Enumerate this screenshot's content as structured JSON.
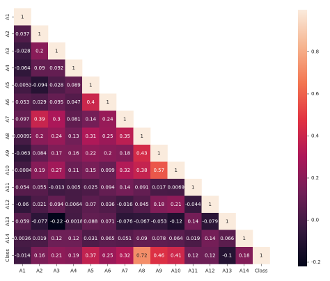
{
  "chart_data": {
    "type": "heatmap",
    "title": "",
    "xlabel": "",
    "ylabel": "",
    "labels": [
      "A1",
      "A2",
      "A3",
      "A4",
      "A5",
      "A6",
      "A7",
      "A8",
      "A9",
      "A10",
      "A11",
      "A12",
      "A13",
      "A14",
      "Class"
    ],
    "mask": "upper-triangle",
    "matrix": [
      [
        "1"
      ],
      [
        "0.037",
        "1"
      ],
      [
        "-0.028",
        "0.2",
        "1"
      ],
      [
        "-0.064",
        "0.09",
        "0.092",
        "1"
      ],
      [
        "-0.0053",
        "-0.094",
        "0.028",
        "0.089",
        "1"
      ],
      [
        "0.053",
        "0.029",
        "0.095",
        "0.047",
        "0.4",
        "1"
      ],
      [
        "0.097",
        "0.39",
        "0.3",
        "0.081",
        "0.14",
        "0.24",
        "1"
      ],
      [
        "0.00092",
        "0.2",
        "0.24",
        "0.13",
        "0.31",
        "0.25",
        "0.35",
        "1"
      ],
      [
        "-0.063",
        "0.084",
        "0.17",
        "0.16",
        "0.22",
        "0.2",
        "0.18",
        "0.43",
        "1"
      ],
      [
        "-0.0084",
        "0.19",
        "0.27",
        "0.11",
        "0.15",
        "0.099",
        "0.32",
        "0.38",
        "0.57",
        "1"
      ],
      [
        "0.054",
        "0.055",
        "-0.013",
        "0.005",
        "0.025",
        "0.094",
        "0.14",
        "0.091",
        "0.017",
        "0.0069",
        "1"
      ],
      [
        "-0.06",
        "0.021",
        "0.094",
        "0.0064",
        "0.07",
        "0.036",
        "-0.016",
        "0.045",
        "0.18",
        "0.21",
        "-0.044",
        "1"
      ],
      [
        "0.059",
        "-0.077",
        "-0.22",
        "-0.0018",
        "0.088",
        "0.071",
        "-0.076",
        "-0.067",
        "-0.053",
        "-0.12",
        "0.14",
        "-0.079",
        "1"
      ],
      [
        "0.0036",
        "0.019",
        "0.12",
        "0.12",
        "0.031",
        "0.065",
        "0.051",
        "0.09",
        "0.078",
        "0.064",
        "0.019",
        "0.14",
        "0.066",
        "1"
      ],
      [
        "-0.014",
        "0.16",
        "0.21",
        "0.19",
        "0.37",
        "0.25",
        "0.32",
        "0.72",
        "0.46",
        "0.41",
        "0.12",
        "0.12",
        "-0.1",
        "0.18",
        "1"
      ]
    ],
    "colorbar": {
      "min": -0.22,
      "max": 1.0,
      "ticks": [
        "-0.2",
        "0.0",
        "0.2",
        "0.4",
        "0.6",
        "0.8"
      ],
      "colormap": "rocket",
      "stops": [
        "#03051a",
        "#35193e",
        "#701f57",
        "#ad1759",
        "#e13342",
        "#f37651",
        "#f6b48f",
        "#faebdd"
      ]
    }
  }
}
